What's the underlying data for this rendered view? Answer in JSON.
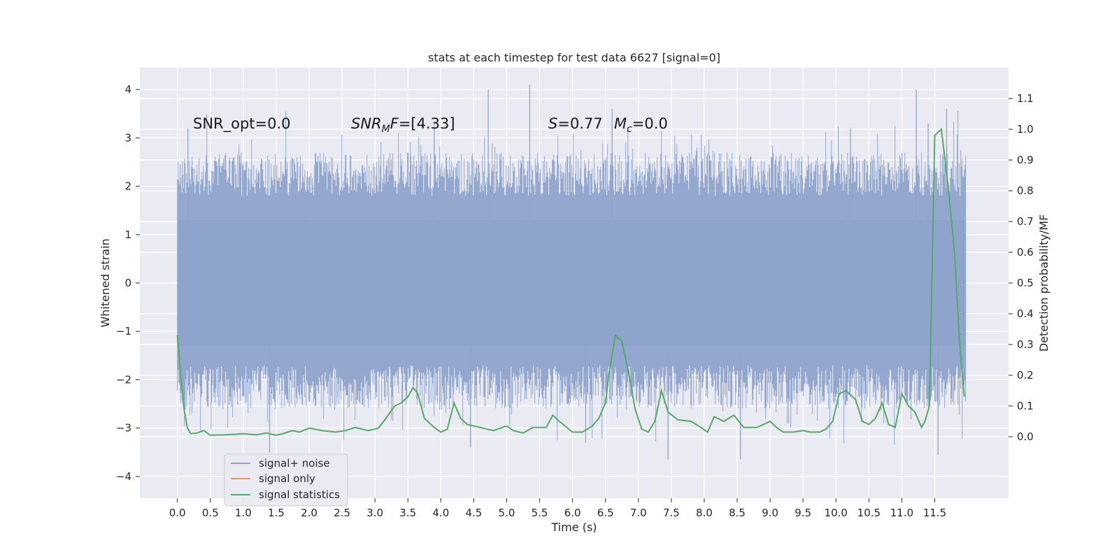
{
  "chart_data": {
    "type": "line",
    "title": "stats at each timestep for test data 6627 [signal=0]",
    "xlabel": "Time (s)",
    "ylabel_left": "Whitened strain",
    "ylabel_right": "Detection probability/MF",
    "xlim": [
      -0.57,
      12.62
    ],
    "ylim_left": [
      -4.45,
      4.45
    ],
    "ylim_right": [
      -0.2,
      1.2
    ],
    "x_ticks": [
      0.0,
      0.5,
      1.0,
      1.5,
      2.0,
      2.5,
      3.0,
      3.5,
      4.0,
      4.5,
      5.0,
      5.5,
      6.0,
      6.5,
      7.0,
      7.5,
      8.0,
      8.5,
      9.0,
      9.5,
      10.0,
      10.5,
      11.0,
      11.5
    ],
    "x_tick_labels": [
      "0.0",
      "0.5",
      "1.0",
      "1.5",
      "2.0",
      "2.5",
      "3.0",
      "3.5",
      "4.0",
      "4.5",
      "5.0",
      "5.5",
      "6.0",
      "6.5",
      "7.0",
      "7.5",
      "8.0",
      "8.5",
      "9.0",
      "9.5",
      "10.0",
      "10.5",
      "11.0",
      "11.5"
    ],
    "y_left_ticks": [
      -4,
      -3,
      -2,
      -1,
      0,
      1,
      2,
      3,
      4
    ],
    "y_left_tick_labels": [
      "−4",
      "−3",
      "−2",
      "−1",
      "0",
      "1",
      "2",
      "3",
      "4"
    ],
    "y_right_ticks": [
      0.0,
      0.1,
      0.2,
      0.3,
      0.4,
      0.5,
      0.6,
      0.7,
      0.8,
      0.9,
      1.0,
      1.1
    ],
    "y_right_tick_labels": [
      "0.0",
      "0.1",
      "0.2",
      "0.3",
      "0.4",
      "0.5",
      "0.6",
      "0.7",
      "0.8",
      "0.9",
      "1.0",
      "1.1"
    ],
    "grid": true,
    "legend_position": "lower-left",
    "series": [
      {
        "name": "signal+ noise",
        "color": "#8fa4cc",
        "axis": "left",
        "description_values": {
          "t_start": 0.0,
          "t_end": 11.97,
          "dense_band": [
            -1.3,
            1.3
          ],
          "typical_envelope": [
            -2.2,
            2.3
          ]
        },
        "peaks": [
          {
            "t": 0.16,
            "v": 3.2
          },
          {
            "t": 4.72,
            "v": 4.0
          },
          {
            "t": 5.35,
            "v": 4.1
          },
          {
            "t": 11.22,
            "v": 4.0
          },
          {
            "t": 11.68,
            "v": 3.6
          },
          {
            "t": 11.4,
            "v": 3.3
          },
          {
            "t": 10.22,
            "v": 3.2
          },
          {
            "t": 6.6,
            "v": 3.6
          },
          {
            "t": 3.9,
            "v": 3.3
          },
          {
            "t": 1.4,
            "v": -3.5
          },
          {
            "t": 4.45,
            "v": -3.4
          },
          {
            "t": 7.45,
            "v": -3.65
          },
          {
            "t": 8.55,
            "v": -3.65
          },
          {
            "t": 11.55,
            "v": -3.55
          },
          {
            "t": 6.2,
            "v": -3.3
          }
        ]
      },
      {
        "name": "signal only",
        "color": "#dd8452",
        "axis": "left",
        "values_note": "not visible"
      },
      {
        "name": "signal statistics",
        "color": "#55a868",
        "axis": "right",
        "x": [
          0.0,
          0.05,
          0.1,
          0.15,
          0.2,
          0.3,
          0.4,
          0.5,
          0.7,
          0.9,
          1.0,
          1.1,
          1.2,
          1.35,
          1.5,
          1.6,
          1.75,
          1.85,
          2.0,
          2.2,
          2.4,
          2.55,
          2.7,
          2.9,
          3.05,
          3.15,
          3.3,
          3.4,
          3.5,
          3.58,
          3.65,
          3.75,
          3.9,
          4.0,
          4.1,
          4.2,
          4.3,
          4.4,
          4.6,
          4.8,
          5.0,
          5.1,
          5.25,
          5.4,
          5.5,
          5.6,
          5.7,
          5.8,
          6.0,
          6.15,
          6.3,
          6.4,
          6.5,
          6.55,
          6.65,
          6.75,
          6.85,
          6.95,
          7.05,
          7.15,
          7.25,
          7.35,
          7.45,
          7.6,
          7.8,
          7.95,
          8.05,
          8.15,
          8.3,
          8.45,
          8.6,
          8.8,
          9.0,
          9.1,
          9.2,
          9.35,
          9.5,
          9.6,
          9.75,
          9.85,
          9.95,
          10.05,
          10.15,
          10.3,
          10.4,
          10.5,
          10.6,
          10.7,
          10.8,
          10.9,
          11.0,
          11.1,
          11.2,
          11.3,
          11.35,
          11.42,
          11.5,
          11.6,
          11.7,
          11.8,
          11.88,
          11.95
        ],
        "y": [
          0.33,
          0.2,
          0.09,
          0.03,
          0.01,
          0.012,
          0.02,
          0.005,
          0.006,
          0.008,
          0.01,
          0.008,
          0.006,
          0.012,
          0.005,
          0.01,
          0.02,
          0.015,
          0.028,
          0.02,
          0.015,
          0.02,
          0.03,
          0.02,
          0.028,
          0.055,
          0.1,
          0.11,
          0.13,
          0.16,
          0.14,
          0.06,
          0.03,
          0.015,
          0.025,
          0.11,
          0.06,
          0.04,
          0.03,
          0.02,
          0.035,
          0.02,
          0.012,
          0.03,
          0.03,
          0.03,
          0.07,
          0.05,
          0.015,
          0.015,
          0.035,
          0.06,
          0.11,
          0.2,
          0.33,
          0.31,
          0.21,
          0.09,
          0.025,
          0.015,
          0.05,
          0.15,
          0.08,
          0.055,
          0.05,
          0.03,
          0.015,
          0.065,
          0.05,
          0.07,
          0.03,
          0.03,
          0.05,
          0.03,
          0.015,
          0.015,
          0.02,
          0.015,
          0.015,
          0.025,
          0.05,
          0.14,
          0.15,
          0.12,
          0.05,
          0.04,
          0.06,
          0.11,
          0.04,
          0.03,
          0.14,
          0.1,
          0.08,
          0.03,
          0.05,
          0.1,
          0.98,
          1.0,
          0.82,
          0.6,
          0.3,
          0.13
        ]
      }
    ],
    "annotations": [
      {
        "text": "SNR_opt=0.0",
        "t": 0.2,
        "v": 3.3
      },
      {
        "math": "SNR",
        "sub": "M",
        "rest": "F=[4.33]",
        "t": 2.6,
        "v": 3.3
      },
      {
        "math": "S",
        "rest": "=0.77",
        "t": 5.6,
        "v": 3.3
      },
      {
        "math": "M",
        "sub": "c",
        "rest": "=0.0",
        "t": 6.6,
        "v": 3.3
      }
    ]
  }
}
